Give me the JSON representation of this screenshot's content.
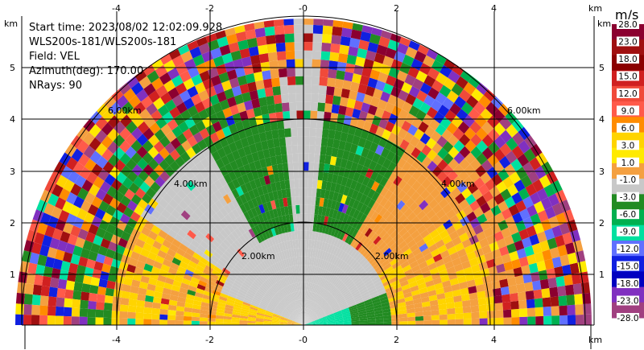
{
  "info": {
    "start_time": "Start time: 2023/08/02 12:02:09.928",
    "device": "WLS200s-181/WLS200s-181",
    "field": "Field: VEL",
    "azimuth": "Azimuth(deg): 170.00",
    "nrays": "NRays: 90"
  },
  "axes": {
    "unit_label": "km",
    "x_ticks": [
      "-4",
      "-2",
      "-0",
      "2",
      "4"
    ],
    "y_ticks": [
      "1",
      "2",
      "3",
      "4",
      "5"
    ]
  },
  "range_rings": {
    "labels": [
      "2.00km",
      "4.00km",
      "6.00km"
    ]
  },
  "colorbar": {
    "unit": "m/s",
    "levels": [
      "28.0",
      "23.0",
      "18.0",
      "15.0",
      "12.0",
      "9.0",
      "6.0",
      "3.0",
      "1.0",
      "-1.0",
      "-3.0",
      "-6.0",
      "-9.0",
      "-12.0",
      "-15.0",
      "-18.0",
      "-23.0",
      "-28.0"
    ],
    "colors": [
      "#8b0030",
      "#a01010",
      "#8b0000",
      "#d02020",
      "#f04a3a",
      "#ff5a4a",
      "#ff8c00",
      "#ffd400",
      "#ffea00",
      "#f4a040",
      "#c8c8c8",
      "#228b22",
      "#00b050",
      "#00e0a0",
      "#6070ff",
      "#1020e0",
      "#0000c0",
      "#8030c0",
      "#a04080"
    ]
  }
}
